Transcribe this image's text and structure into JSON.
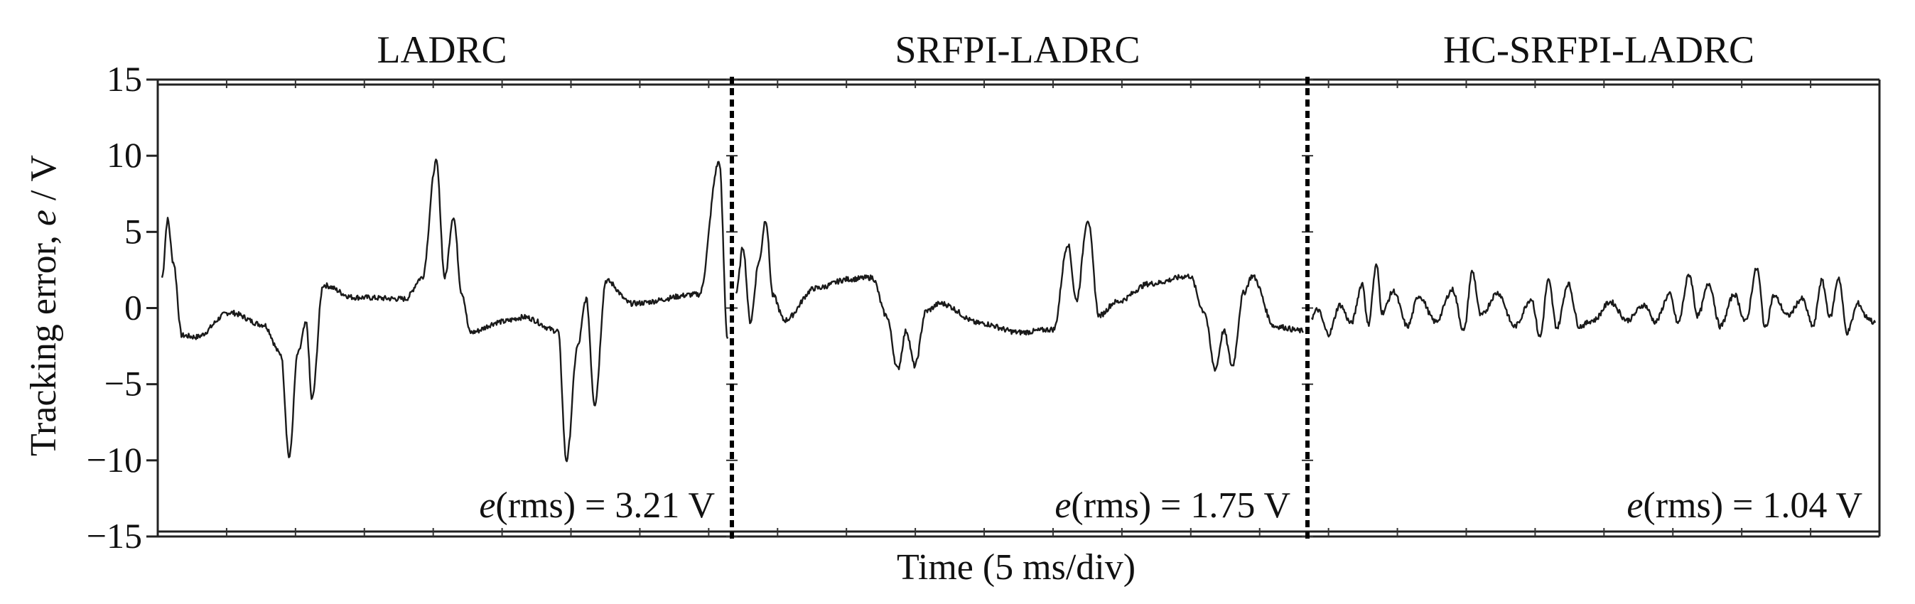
{
  "chart_data": {
    "type": "line",
    "ylabel_text": "Tracking error, ",
    "ylabel_var": "e",
    "ylabel_unit": " / V",
    "xlabel": "Time (5 ms/div)",
    "ylim": [
      -15,
      15
    ],
    "yticks": [
      15,
      10,
      5,
      0,
      -5,
      -10,
      -15
    ],
    "grid": false,
    "panels": [
      {
        "title": "LADRC",
        "rms_var": "e",
        "rms_text": "(rms) = 3.21 V",
        "keypoints": [
          [
            0,
            2
          ],
          [
            0.01,
            5.8
          ],
          [
            0.02,
            3
          ],
          [
            0.035,
            -1.8
          ],
          [
            0.06,
            -1.9
          ],
          [
            0.12,
            -0.3
          ],
          [
            0.18,
            -1.1
          ],
          [
            0.21,
            -3
          ],
          [
            0.225,
            -9.8
          ],
          [
            0.24,
            -3
          ],
          [
            0.255,
            -1
          ],
          [
            0.265,
            -6
          ],
          [
            0.285,
            1.5
          ],
          [
            0.34,
            0.7
          ],
          [
            0.43,
            0.6
          ],
          [
            0.46,
            2
          ],
          [
            0.485,
            9.6
          ],
          [
            0.5,
            2
          ],
          [
            0.515,
            6
          ],
          [
            0.53,
            1
          ],
          [
            0.545,
            -1.6
          ],
          [
            0.6,
            -0.9
          ],
          [
            0.64,
            -0.6
          ],
          [
            0.7,
            -1.5
          ],
          [
            0.715,
            -10
          ],
          [
            0.735,
            -2.5
          ],
          [
            0.75,
            0.6
          ],
          [
            0.765,
            -6.3
          ],
          [
            0.785,
            1.8
          ],
          [
            0.83,
            0.3
          ],
          [
            0.95,
            0.9
          ],
          [
            0.985,
            9.6
          ],
          [
            1,
            -2
          ]
        ]
      },
      {
        "title": "SRFPI-LADRC",
        "rms_var": "e",
        "rms_text": "(rms) = 1.75 V",
        "keypoints": [
          [
            0,
            1
          ],
          [
            0.012,
            4
          ],
          [
            0.025,
            -0.9
          ],
          [
            0.04,
            3
          ],
          [
            0.052,
            5.8
          ],
          [
            0.065,
            0.8
          ],
          [
            0.085,
            -0.8
          ],
          [
            0.14,
            1.3
          ],
          [
            0.2,
            1.9
          ],
          [
            0.24,
            2
          ],
          [
            0.265,
            -0.5
          ],
          [
            0.285,
            -4
          ],
          [
            0.3,
            -1.5
          ],
          [
            0.315,
            -3.8
          ],
          [
            0.335,
            -0.2
          ],
          [
            0.36,
            0.3
          ],
          [
            0.43,
            -1
          ],
          [
            0.5,
            -1.6
          ],
          [
            0.56,
            -1.4
          ],
          [
            0.585,
            4.2
          ],
          [
            0.6,
            0.5
          ],
          [
            0.62,
            5.8
          ],
          [
            0.64,
            -0.5
          ],
          [
            0.67,
            0.4
          ],
          [
            0.73,
            1.6
          ],
          [
            0.8,
            2.1
          ],
          [
            0.825,
            -0.2
          ],
          [
            0.845,
            -4
          ],
          [
            0.86,
            -1.5
          ],
          [
            0.875,
            -3.8
          ],
          [
            0.895,
            1
          ],
          [
            0.91,
            2.1
          ],
          [
            0.95,
            -1.2
          ],
          [
            1,
            -1.5
          ]
        ]
      },
      {
        "title": "HC-SRFPI-LADRC",
        "rms_var": "e",
        "rms_text": "(rms) = 1.04 V",
        "keypoints": [
          [
            0,
            -0.6
          ],
          [
            0.01,
            -0.1
          ],
          [
            0.03,
            -1.7
          ],
          [
            0.05,
            0.2
          ],
          [
            0.07,
            -1
          ],
          [
            0.09,
            1.6
          ],
          [
            0.1,
            -1.1
          ],
          [
            0.115,
            2.8
          ],
          [
            0.125,
            -0.3
          ],
          [
            0.145,
            1.1
          ],
          [
            0.17,
            -1.2
          ],
          [
            0.19,
            0.8
          ],
          [
            0.22,
            -0.9
          ],
          [
            0.25,
            1.2
          ],
          [
            0.27,
            -1.5
          ],
          [
            0.285,
            2.4
          ],
          [
            0.3,
            -0.5
          ],
          [
            0.33,
            1
          ],
          [
            0.36,
            -1.2
          ],
          [
            0.39,
            0.6
          ],
          [
            0.405,
            -1.9
          ],
          [
            0.42,
            1.8
          ],
          [
            0.435,
            -1.3
          ],
          [
            0.455,
            1.6
          ],
          [
            0.475,
            -1.2
          ],
          [
            0.5,
            -0.8
          ],
          [
            0.53,
            0.4
          ],
          [
            0.56,
            -0.8
          ],
          [
            0.59,
            0.2
          ],
          [
            0.61,
            -0.9
          ],
          [
            0.635,
            0.9
          ],
          [
            0.65,
            -1
          ],
          [
            0.67,
            2.2
          ],
          [
            0.685,
            -0.5
          ],
          [
            0.705,
            1.6
          ],
          [
            0.725,
            -1.2
          ],
          [
            0.75,
            0.9
          ],
          [
            0.77,
            -0.9
          ],
          [
            0.79,
            2.6
          ],
          [
            0.805,
            -1.3
          ],
          [
            0.82,
            0.8
          ],
          [
            0.845,
            -0.5
          ],
          [
            0.87,
            0.6
          ],
          [
            0.89,
            -1.2
          ],
          [
            0.905,
            1.8
          ],
          [
            0.92,
            -0.6
          ],
          [
            0.935,
            2
          ],
          [
            0.95,
            -1.6
          ],
          [
            0.97,
            0.3
          ],
          [
            0.985,
            -0.6
          ],
          [
            1,
            -1
          ]
        ]
      }
    ]
  }
}
